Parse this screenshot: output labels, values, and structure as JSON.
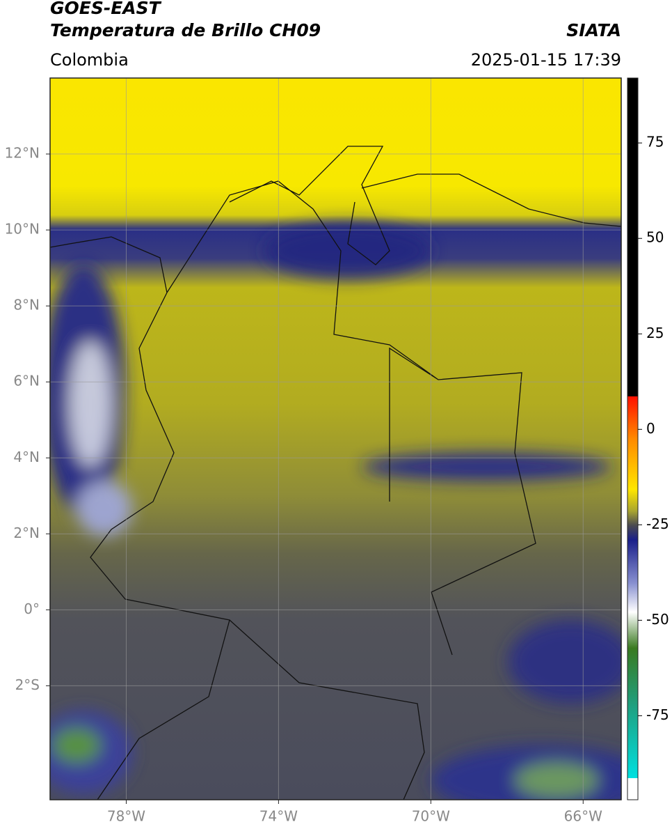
{
  "header": {
    "title_line1": "GOES-EAST",
    "title_line2": "Temperatura de Brillo CH09",
    "source": "SIATA",
    "region": "Colombia",
    "datetime": "2025-01-15 17:39"
  },
  "map": {
    "xlim": [
      -80,
      -65
    ],
    "ylim": [
      -5,
      14
    ],
    "grid": true,
    "xticks": [
      {
        "value": -78,
        "label": "78°W"
      },
      {
        "value": -74,
        "label": "74°W"
      },
      {
        "value": -70,
        "label": "70°W"
      },
      {
        "value": -66,
        "label": "66°W"
      }
    ],
    "yticks": [
      {
        "value": 12,
        "label": "12°N"
      },
      {
        "value": 10,
        "label": "10°N"
      },
      {
        "value": 8,
        "label": "8°N"
      },
      {
        "value": 6,
        "label": "6°N"
      },
      {
        "value": 4,
        "label": "4°N"
      },
      {
        "value": 2,
        "label": "2°N"
      },
      {
        "value": 0,
        "label": "0°"
      },
      {
        "value": -2,
        "label": "2°S"
      }
    ]
  },
  "colorbar": {
    "ylim": [
      -97,
      92
    ],
    "yticks": [
      75,
      50,
      25,
      0,
      -25,
      -50,
      -75
    ]
  }
}
